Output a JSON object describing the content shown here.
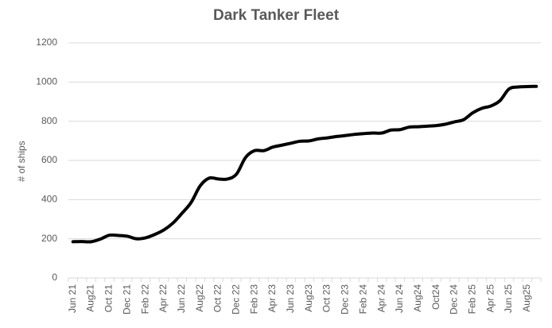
{
  "chart_data": {
    "type": "line",
    "title": "Dark Tanker Fleet",
    "y_label": "# of ships",
    "categories": [
      "Jun 21",
      null,
      "Aug21",
      null,
      "Oct 21",
      null,
      "Dec 21",
      null,
      "Feb 22",
      null,
      "Apr 22",
      null,
      "Jun 22",
      null,
      "Aug22",
      null,
      "Oct 22",
      null,
      "Dec 22",
      null,
      "Feb 23",
      null,
      "Apr 23",
      null,
      "Jun 23",
      null,
      "Aug23",
      null,
      "Oct 23",
      null,
      "Dec 23",
      null,
      "Feb 24",
      null,
      "Apr 24",
      null,
      "Jun 24",
      null,
      "Aug24",
      null,
      "Oct24",
      null,
      "Dec 24",
      null,
      "Feb 25",
      null,
      "Apr 25",
      null,
      "Jun 25",
      null,
      "Aug25",
      null
    ],
    "values": [
      185,
      186,
      185,
      198,
      218,
      217,
      213,
      200,
      205,
      222,
      245,
      280,
      330,
      385,
      470,
      510,
      505,
      505,
      530,
      615,
      650,
      650,
      668,
      678,
      688,
      698,
      700,
      710,
      715,
      722,
      727,
      733,
      737,
      740,
      740,
      755,
      757,
      770,
      772,
      775,
      778,
      785,
      797,
      808,
      843,
      866,
      878,
      905,
      965,
      975,
      977,
      978
    ],
    "color": "#000000",
    "ylim": [
      0,
      1200
    ],
    "yticks": [
      0,
      200,
      400,
      600,
      800,
      1000,
      1200
    ],
    "grid": true
  }
}
